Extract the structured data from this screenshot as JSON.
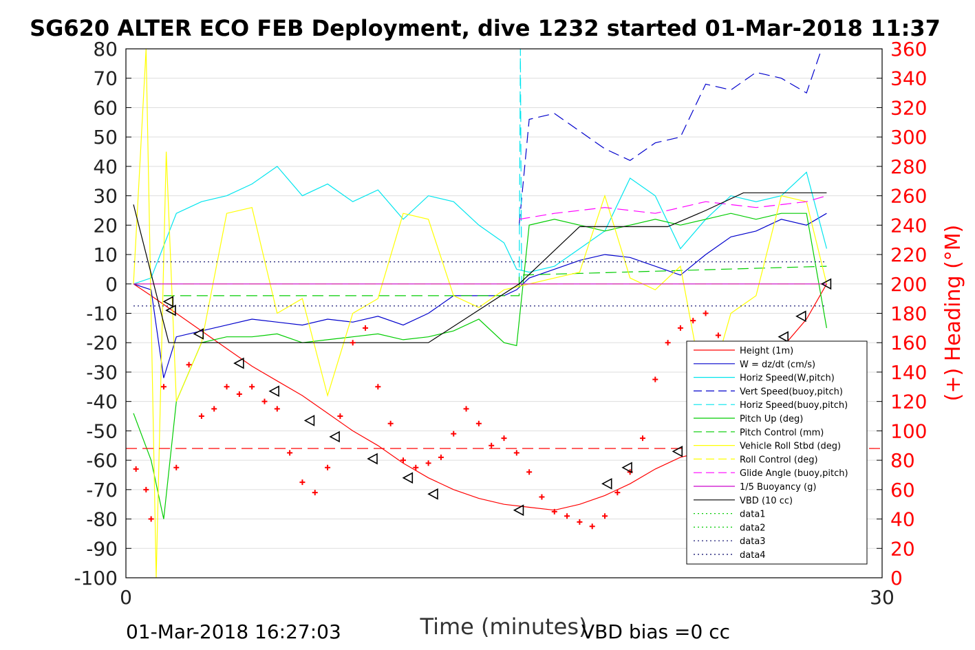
{
  "chart_data": {
    "type": "line",
    "title": "SG620 ALTER ECO FEB Deployment, dive 1232 started 01-Mar-2018 11:37",
    "xlabel": "Time (minutes)",
    "ylabel_right": "(+) Heading (°M)",
    "xlim": [
      0,
      30
    ],
    "ylim_left": [
      -100,
      80
    ],
    "ylim_right": [
      0,
      360
    ],
    "x_ticks": [
      0,
      30
    ],
    "y_ticks_left": [
      80,
      70,
      60,
      50,
      40,
      30,
      20,
      10,
      0,
      -10,
      -20,
      -30,
      -40,
      -50,
      -60,
      -70,
      -80,
      -90,
      -100
    ],
    "y_ticks_right": [
      360,
      340,
      320,
      300,
      280,
      260,
      240,
      220,
      200,
      180,
      160,
      140,
      120,
      100,
      80,
      60,
      40,
      20,
      0
    ],
    "grid": "horizontal",
    "legend_position": "lower-right",
    "footer_left": "01-Mar-2018 16:27:03",
    "footer_right": "VBD bias =0 cc",
    "series": [
      {
        "name": "Height (1m)",
        "color": "#ff0000",
        "style": "solid",
        "x": [
          0.3,
          1,
          2,
          3,
          4,
          5,
          6,
          7,
          8,
          9,
          10,
          11,
          12,
          13,
          14,
          15,
          16,
          17,
          18,
          19,
          20,
          21,
          22,
          23,
          24,
          25,
          26,
          27,
          27.8
        ],
        "y": [
          0,
          -4,
          -10,
          -16,
          -22,
          -28,
          -33,
          -38,
          -44,
          -50,
          -55,
          -61,
          -66,
          -70,
          -73,
          -75,
          -76,
          -77,
          -75,
          -72,
          -68,
          -63,
          -59,
          -57,
          -48,
          -36,
          -22,
          -12,
          0
        ]
      },
      {
        "name": "W = dz/dt (cm/s)",
        "color": "#0000cc",
        "style": "solid",
        "x": [
          0.3,
          1,
          1.5,
          2,
          3,
          4,
          5,
          6,
          7,
          8,
          9,
          10,
          11,
          12,
          13,
          14,
          15,
          15.5,
          16,
          17,
          18,
          19,
          20,
          21,
          22,
          23,
          24,
          25,
          26,
          27,
          27.8
        ],
        "y": [
          0,
          -2,
          -32,
          -18,
          -16,
          -14,
          -12,
          -13,
          -14,
          -12,
          -13,
          -11,
          -14,
          -10,
          -4,
          -4,
          -4,
          -2,
          2,
          5,
          8,
          10,
          9,
          6,
          3,
          10,
          16,
          18,
          22,
          20,
          24
        ]
      },
      {
        "name": "Horiz Speed(W,pitch)",
        "color": "#00e5ee",
        "style": "solid",
        "x": [
          0.3,
          1,
          2,
          3,
          4,
          5,
          6,
          7,
          8,
          9,
          10,
          11,
          12,
          13,
          14,
          15,
          15.5,
          16,
          17,
          18,
          19,
          20,
          21,
          22,
          23,
          24,
          25,
          26,
          27,
          27.8
        ],
        "y": [
          0,
          2,
          24,
          28,
          30,
          34,
          40,
          30,
          34,
          28,
          32,
          22,
          30,
          28,
          20,
          14,
          5,
          4,
          6,
          12,
          18,
          36,
          30,
          12,
          22,
          30,
          28,
          30,
          38,
          12
        ]
      },
      {
        "name": "Vert Speed(buoy,pitch)",
        "color": "#0000cc",
        "style": "dashed",
        "x": [
          15.6,
          16,
          17,
          18,
          19,
          20,
          21,
          22,
          23,
          24,
          25,
          26,
          27,
          27.6
        ],
        "y": [
          20,
          56,
          58,
          52,
          46,
          42,
          48,
          50,
          68,
          66,
          72,
          70,
          65,
          80
        ]
      },
      {
        "name": "Horiz Speed(buoy,pitch)",
        "color": "#00e5ee",
        "style": "dashed",
        "x": [
          15.6,
          15.65,
          15.7
        ],
        "y": [
          0,
          80,
          0
        ]
      },
      {
        "name": "Pitch Up (deg)",
        "color": "#00cc00",
        "style": "solid",
        "x": [
          0.3,
          1,
          1.5,
          2,
          3,
          4,
          5,
          6,
          7,
          8,
          9,
          10,
          11,
          12,
          13,
          14,
          15,
          15.5,
          16,
          17,
          18,
          19,
          20,
          21,
          22,
          23,
          24,
          25,
          26,
          27,
          27.8
        ],
        "y": [
          -44,
          -60,
          -80,
          -40,
          -20,
          -18,
          -18,
          -17,
          -20,
          -19,
          -18,
          -17,
          -19,
          -18,
          -16,
          -12,
          -20,
          -21,
          20,
          22,
          20,
          18,
          20,
          22,
          20,
          22,
          24,
          22,
          24,
          24,
          -15
        ]
      },
      {
        "name": "Pitch Control (mm)",
        "color": "#00cc00",
        "style": "dashed",
        "x": [
          1.5,
          15.6,
          15.6,
          27.8
        ],
        "y": [
          -4,
          -4,
          3,
          6
        ]
      },
      {
        "name": "Vehicle Roll Stbd (deg)",
        "color": "#ffff00",
        "style": "solid",
        "x": [
          0.3,
          0.8,
          1.2,
          1.6,
          2,
          3,
          4,
          5,
          6,
          7,
          8,
          9,
          10,
          11,
          12,
          13,
          14,
          15,
          16,
          17,
          18,
          19,
          20,
          21,
          22,
          23,
          24,
          25,
          26,
          27,
          27.8
        ],
        "y": [
          0,
          80,
          -100,
          45,
          -40,
          -20,
          24,
          26,
          -10,
          -5,
          -38,
          -10,
          -5,
          24,
          22,
          -4,
          -8,
          -2,
          0,
          2,
          4,
          30,
          2,
          -2,
          6,
          -40,
          -10,
          -4,
          30,
          28,
          0
        ]
      },
      {
        "name": "Roll Control (deg)",
        "color": "#ffff00",
        "style": "dashed",
        "x": [
          0.3,
          27.8
        ],
        "y": [
          0,
          0
        ]
      },
      {
        "name": "Glide Angle (buoy,pitch)",
        "color": "#ff00ff",
        "style": "dashed",
        "x": [
          15.6,
          17,
          19,
          21,
          23,
          25,
          27,
          27.8
        ],
        "y": [
          22,
          24,
          26,
          24,
          28,
          26,
          28,
          30
        ]
      },
      {
        "name": "1/5 Buoyancy (g)",
        "color": "#cc00cc",
        "style": "solid",
        "x": [
          0.3,
          27.8
        ],
        "y": [
          0,
          0
        ]
      },
      {
        "name": "VBD (10 cc)",
        "color": "#000000",
        "style": "solid",
        "x": [
          0.3,
          1.4,
          1.7,
          12,
          15.6,
          18,
          21.5,
          23,
          24.5,
          27.8
        ],
        "y": [
          27,
          -10,
          -20,
          -20,
          0,
          19.5,
          19.5,
          25,
          31,
          31
        ]
      },
      {
        "name": "data1",
        "color": "#00cc00",
        "style": "dotted",
        "x": [],
        "y": []
      },
      {
        "name": "data2",
        "color": "#00cc00",
        "style": "dotted",
        "x": [],
        "y": []
      },
      {
        "name": "data3",
        "color": "#000066",
        "style": "dotted",
        "x": [
          0.3,
          27.8
        ],
        "y": [
          7.5,
          7.5
        ]
      },
      {
        "name": "data4",
        "color": "#000066",
        "style": "dotted",
        "x": [
          0.3,
          27.8
        ],
        "y": [
          -7.5,
          -7.5
        ]
      }
    ],
    "heading_reference": {
      "y_right": 88,
      "color": "#ff0000",
      "style": "dashed"
    },
    "heading_points": {
      "axis": "right",
      "color": "#ff0000",
      "x": [
        0.4,
        0.8,
        1.0,
        1.5,
        2,
        2.5,
        3,
        3.5,
        4,
        4.5,
        5,
        5.5,
        6,
        6.5,
        7,
        7.5,
        8,
        8.5,
        9,
        9.5,
        10,
        10.5,
        11,
        11.5,
        12,
        12.5,
        13,
        13.5,
        14,
        14.5,
        15,
        15.5,
        16,
        16.5,
        17,
        17.5,
        18,
        18.5,
        19,
        19.5,
        20,
        20.5,
        21,
        21.5,
        22,
        22.5,
        23,
        23.5,
        24,
        24.5,
        25,
        25.5,
        26,
        26.5,
        27,
        27.5
      ],
      "y": [
        74,
        60,
        40,
        130,
        75,
        145,
        110,
        115,
        130,
        125,
        130,
        120,
        115,
        85,
        65,
        58,
        75,
        110,
        160,
        170,
        130,
        105,
        80,
        75,
        78,
        82,
        98,
        115,
        105,
        90,
        95,
        85,
        72,
        55,
        45,
        42,
        38,
        35,
        42,
        58,
        72,
        95,
        135,
        160,
        170,
        175,
        180,
        165,
        140,
        110,
        75,
        55,
        60,
        70,
        110,
        125
      ]
    },
    "triangle_markers": {
      "x": [
        1.7,
        1.8,
        2.9,
        4.5,
        5.9,
        7.3,
        8.3,
        9.8,
        11.2,
        12.2,
        15.6,
        19.1,
        19.9,
        21.9,
        23.5,
        23.7,
        24.7,
        26.1,
        26.8,
        27.8
      ],
      "y": [
        -6,
        -9,
        -17,
        -27,
        -36.5,
        -46.5,
        -52,
        -59.5,
        -66,
        -71.5,
        -77,
        -68,
        -62.5,
        -57,
        -45.5,
        -43.5,
        -36.5,
        -18,
        -11,
        0
      ]
    }
  }
}
